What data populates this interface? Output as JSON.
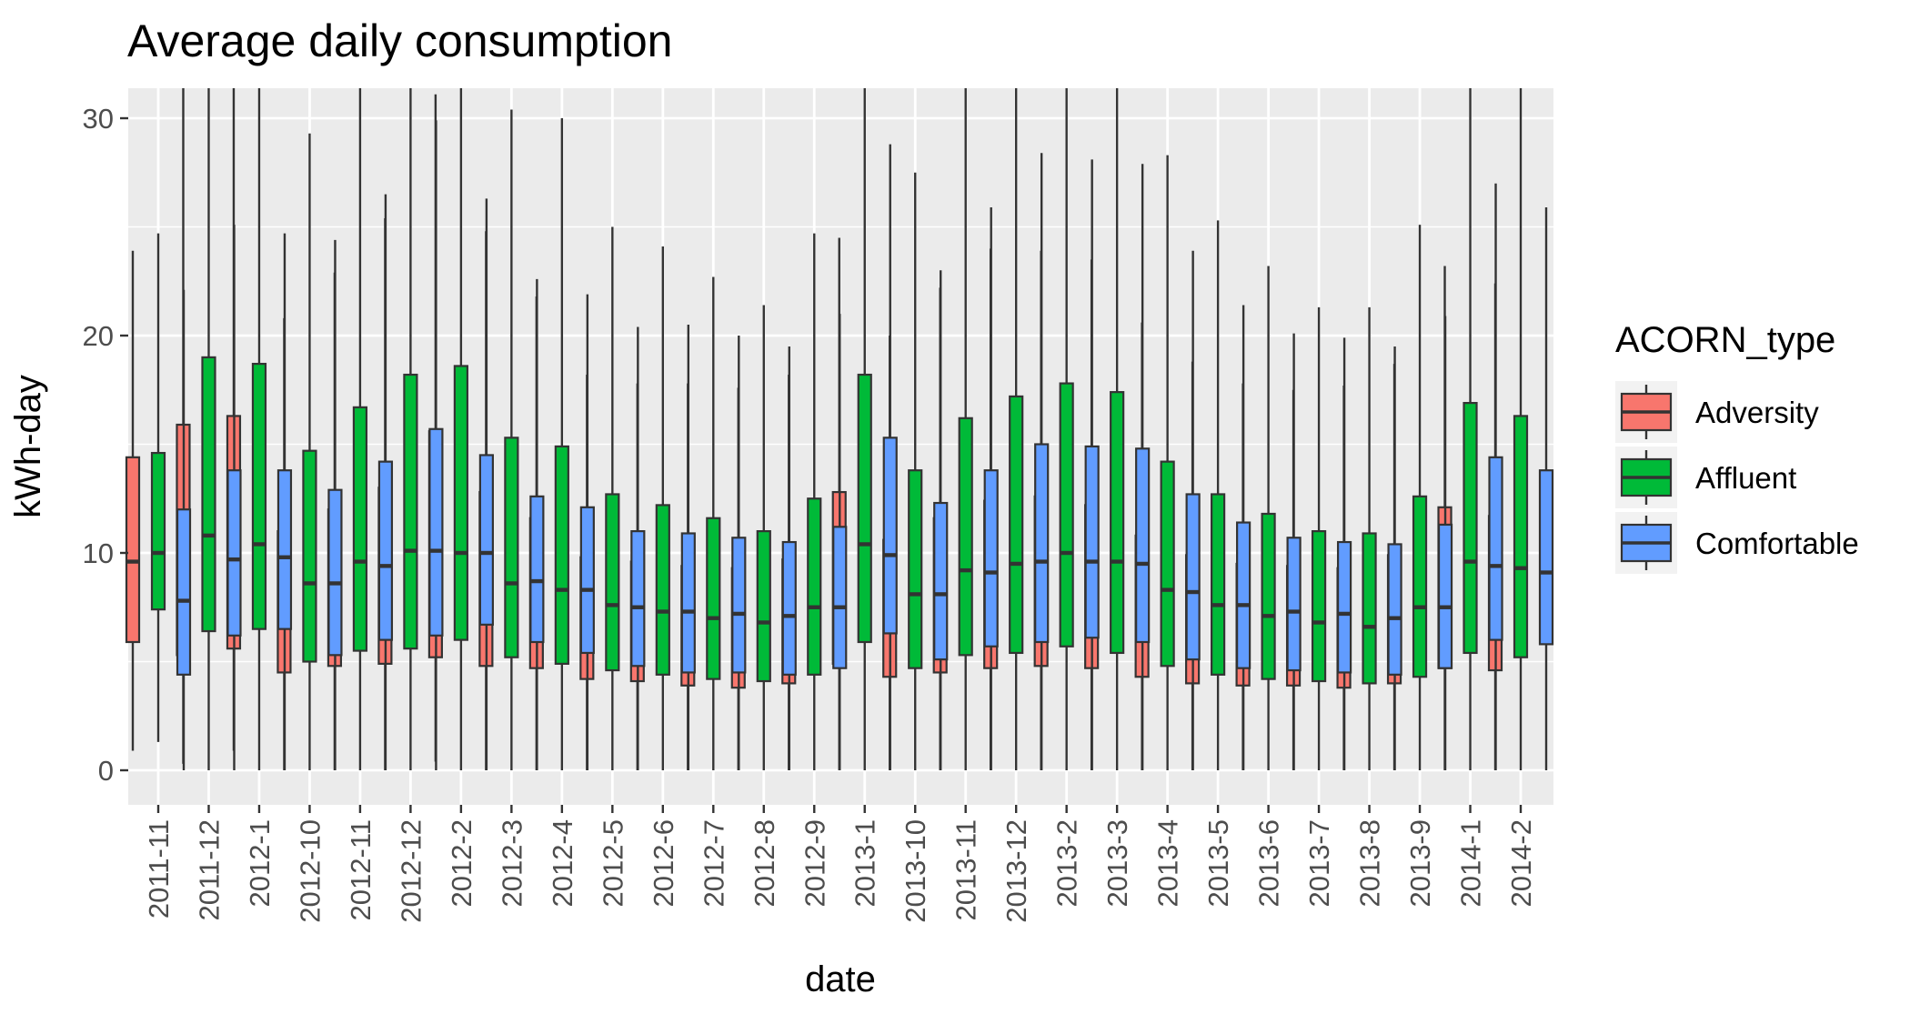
{
  "chart_data": {
    "type": "boxplot",
    "title": "Average daily consumption",
    "xlabel": "date",
    "ylabel": "kWh-day",
    "ylim": [
      -1.5,
      31.5
    ],
    "yticks": [
      0,
      10,
      20,
      30
    ],
    "grid": true,
    "legend": {
      "title": "ACORN_type",
      "placement": "right"
    },
    "categories": [
      "2011-11",
      "2011-12",
      "2012-1",
      "2012-10",
      "2012-11",
      "2012-12",
      "2012-2",
      "2012-3",
      "2012-4",
      "2012-5",
      "2012-6",
      "2012-7",
      "2012-8",
      "2012-9",
      "2013-1",
      "2013-10",
      "2013-11",
      "2013-12",
      "2013-2",
      "2013-3",
      "2013-4",
      "2013-5",
      "2013-6",
      "2013-7",
      "2013-8",
      "2013-9",
      "2014-1",
      "2014-2"
    ],
    "series": [
      {
        "name": "Adversity",
        "color": "#F8766D",
        "boxes": [
          {
            "whisker_low": 0.9,
            "q1": 5.9,
            "median": 9.6,
            "q3": 14.4,
            "whisker_high": 23.9
          },
          {
            "whisker_low": 0.3,
            "q1": 5.3,
            "median": 9.2,
            "q3": 15.9,
            "whisker_high": 32.0
          },
          {
            "whisker_low": 0.9,
            "q1": 5.6,
            "median": 9.9,
            "q3": 16.3,
            "whisker_high": 32.0
          },
          {
            "whisker_low": 0.0,
            "q1": 4.5,
            "median": 7.2,
            "q3": 11.0,
            "whisker_high": 20.8
          },
          {
            "whisker_low": 0.0,
            "q1": 4.8,
            "median": 7.8,
            "q3": 12.0,
            "whisker_high": 22.9
          },
          {
            "whisker_low": 0.0,
            "q1": 4.9,
            "median": 8.3,
            "q3": 13.0,
            "whisker_high": 25.4
          },
          {
            "whisker_low": 0.4,
            "q1": 5.2,
            "median": 9.2,
            "q3": 15.6,
            "whisker_high": 31.1
          },
          {
            "whisker_low": 0.0,
            "q1": 4.8,
            "median": 7.8,
            "q3": 12.8,
            "whisker_high": 24.8
          },
          {
            "whisker_low": 0.0,
            "q1": 4.7,
            "median": 7.4,
            "q3": 11.6,
            "whisker_high": 21.8
          },
          {
            "whisker_low": 0.0,
            "q1": 4.2,
            "median": 6.5,
            "q3": 9.8,
            "whisker_high": 18.2
          },
          {
            "whisker_low": 0.0,
            "q1": 4.1,
            "median": 6.4,
            "q3": 9.6,
            "whisker_high": 17.8
          },
          {
            "whisker_low": 0.0,
            "q1": 3.9,
            "median": 6.3,
            "q3": 9.4,
            "whisker_high": 17.8
          },
          {
            "whisker_low": 0.0,
            "q1": 3.8,
            "median": 6.2,
            "q3": 9.3,
            "whisker_high": 17.6
          },
          {
            "whisker_low": 0.0,
            "q1": 4.0,
            "median": 6.4,
            "q3": 9.7,
            "whisker_high": 18.2
          },
          {
            "whisker_low": 0.0,
            "q1": 4.9,
            "median": 8.2,
            "q3": 12.8,
            "whisker_high": 24.5
          },
          {
            "whisker_low": 0.0,
            "q1": 4.3,
            "median": 7.0,
            "q3": 10.6,
            "whisker_high": 20.0
          },
          {
            "whisker_low": 0.0,
            "q1": 4.5,
            "median": 7.5,
            "q3": 11.6,
            "whisker_high": 22.2
          },
          {
            "whisker_low": 0.0,
            "q1": 4.7,
            "median": 7.9,
            "q3": 12.4,
            "whisker_high": 24.0
          },
          {
            "whisker_low": 0.0,
            "q1": 4.8,
            "median": 8.0,
            "q3": 12.6,
            "whisker_high": 23.9
          },
          {
            "whisker_low": 0.0,
            "q1": 4.7,
            "median": 7.8,
            "q3": 12.2,
            "whisker_high": 23.5
          },
          {
            "whisker_low": 0.0,
            "q1": 4.3,
            "median": 7.0,
            "q3": 10.8,
            "whisker_high": 20.6
          },
          {
            "whisker_low": 0.0,
            "q1": 4.0,
            "median": 6.5,
            "q3": 9.9,
            "whisker_high": 18.8
          },
          {
            "whisker_low": 0.0,
            "q1": 3.9,
            "median": 6.3,
            "q3": 9.5,
            "whisker_high": 17.8
          },
          {
            "whisker_low": 0.0,
            "q1": 3.9,
            "median": 6.2,
            "q3": 9.4,
            "whisker_high": 17.5
          },
          {
            "whisker_low": 0.0,
            "q1": 3.8,
            "median": 6.1,
            "q3": 9.3,
            "whisker_high": 17.7
          },
          {
            "whisker_low": 0.0,
            "q1": 4.0,
            "median": 6.5,
            "q3": 9.9,
            "whisker_high": 18.7
          },
          {
            "whisker_low": 0.0,
            "q1": 4.7,
            "median": 7.8,
            "q3": 12.1,
            "whisker_high": 23.2
          },
          {
            "whisker_low": 0.0,
            "q1": 4.6,
            "median": 7.6,
            "q3": 11.7,
            "whisker_high": 22.4
          }
        ]
      },
      {
        "name": "Affluent",
        "color": "#00BA38",
        "boxes": [
          {
            "whisker_low": 1.3,
            "q1": 7.4,
            "median": 10.0,
            "q3": 14.6,
            "whisker_high": 24.7
          },
          {
            "whisker_low": 0.0,
            "q1": 6.4,
            "median": 10.8,
            "q3": 19.0,
            "whisker_high": 32.0
          },
          {
            "whisker_low": 0.0,
            "q1": 6.5,
            "median": 10.4,
            "q3": 18.7,
            "whisker_high": 32.0
          },
          {
            "whisker_low": 0.0,
            "q1": 5.0,
            "median": 8.6,
            "q3": 14.7,
            "whisker_high": 29.3
          },
          {
            "whisker_low": 0.0,
            "q1": 5.5,
            "median": 9.6,
            "q3": 16.7,
            "whisker_high": 32.0
          },
          {
            "whisker_low": 0.0,
            "q1": 5.6,
            "median": 10.1,
            "q3": 18.2,
            "whisker_high": 32.0
          },
          {
            "whisker_low": 0.0,
            "q1": 6.0,
            "median": 10.0,
            "q3": 18.6,
            "whisker_high": 32.0
          },
          {
            "whisker_low": 0.0,
            "q1": 5.2,
            "median": 8.6,
            "q3": 15.3,
            "whisker_high": 30.4
          },
          {
            "whisker_low": 0.0,
            "q1": 4.9,
            "median": 8.3,
            "q3": 14.9,
            "whisker_high": 30.0
          },
          {
            "whisker_low": 0.0,
            "q1": 4.6,
            "median": 7.6,
            "q3": 12.7,
            "whisker_high": 25.0
          },
          {
            "whisker_low": 0.0,
            "q1": 4.4,
            "median": 7.3,
            "q3": 12.2,
            "whisker_high": 24.1
          },
          {
            "whisker_low": 0.0,
            "q1": 4.2,
            "median": 7.0,
            "q3": 11.6,
            "whisker_high": 22.7
          },
          {
            "whisker_low": 0.0,
            "q1": 4.1,
            "median": 6.8,
            "q3": 11.0,
            "whisker_high": 21.4
          },
          {
            "whisker_low": 0.0,
            "q1": 4.4,
            "median": 7.5,
            "q3": 12.5,
            "whisker_high": 24.7
          },
          {
            "whisker_low": 0.0,
            "q1": 5.9,
            "median": 10.4,
            "q3": 18.2,
            "whisker_high": 32.0
          },
          {
            "whisker_low": 0.0,
            "q1": 4.7,
            "median": 8.1,
            "q3": 13.8,
            "whisker_high": 27.5
          },
          {
            "whisker_low": 0.0,
            "q1": 5.3,
            "median": 9.2,
            "q3": 16.2,
            "whisker_high": 32.0
          },
          {
            "whisker_low": 0.0,
            "q1": 5.4,
            "median": 9.5,
            "q3": 17.2,
            "whisker_high": 32.0
          },
          {
            "whisker_low": 0.0,
            "q1": 5.7,
            "median": 10.0,
            "q3": 17.8,
            "whisker_high": 32.0
          },
          {
            "whisker_low": 0.0,
            "q1": 5.4,
            "median": 9.6,
            "q3": 17.4,
            "whisker_high": 32.0
          },
          {
            "whisker_low": 0.0,
            "q1": 4.8,
            "median": 8.3,
            "q3": 14.2,
            "whisker_high": 28.3
          },
          {
            "whisker_low": 0.0,
            "q1": 4.4,
            "median": 7.6,
            "q3": 12.7,
            "whisker_high": 25.3
          },
          {
            "whisker_low": 0.0,
            "q1": 4.2,
            "median": 7.1,
            "q3": 11.8,
            "whisker_high": 23.2
          },
          {
            "whisker_low": 0.0,
            "q1": 4.1,
            "median": 6.8,
            "q3": 11.0,
            "whisker_high": 21.3
          },
          {
            "whisker_low": 0.0,
            "q1": 4.0,
            "median": 6.6,
            "q3": 10.9,
            "whisker_high": 21.3
          },
          {
            "whisker_low": 0.0,
            "q1": 4.3,
            "median": 7.5,
            "q3": 12.6,
            "whisker_high": 25.1
          },
          {
            "whisker_low": 0.0,
            "q1": 5.4,
            "median": 9.6,
            "q3": 16.9,
            "whisker_high": 32.0
          },
          {
            "whisker_low": 0.0,
            "q1": 5.2,
            "median": 9.3,
            "q3": 16.3,
            "whisker_high": 32.0
          }
        ]
      },
      {
        "name": "Comfortable",
        "color": "#619CFF",
        "boxes": [
          {
            "whisker_low": 0.0,
            "q1": 4.4,
            "median": 7.8,
            "q3": 12.0,
            "whisker_high": 22.1
          },
          {
            "whisker_low": 0.0,
            "q1": 6.2,
            "median": 9.7,
            "q3": 13.8,
            "whisker_high": 25.1
          },
          {
            "whisker_low": 0.0,
            "q1": 6.5,
            "median": 9.8,
            "q3": 13.8,
            "whisker_high": 24.7
          },
          {
            "whisker_low": 0.0,
            "q1": 5.3,
            "median": 8.6,
            "q3": 12.9,
            "whisker_high": 24.4
          },
          {
            "whisker_low": 0.0,
            "q1": 6.0,
            "median": 9.4,
            "q3": 14.2,
            "whisker_high": 26.5
          },
          {
            "whisker_low": 0.0,
            "q1": 6.2,
            "median": 10.1,
            "q3": 15.7,
            "whisker_high": 29.9
          },
          {
            "whisker_low": 0.0,
            "q1": 6.7,
            "median": 10.0,
            "q3": 14.5,
            "whisker_high": 26.3
          },
          {
            "whisker_low": 0.0,
            "q1": 5.9,
            "median": 8.7,
            "q3": 12.6,
            "whisker_high": 22.6
          },
          {
            "whisker_low": 0.0,
            "q1": 5.4,
            "median": 8.3,
            "q3": 12.1,
            "whisker_high": 21.9
          },
          {
            "whisker_low": 0.0,
            "q1": 4.8,
            "median": 7.5,
            "q3": 11.0,
            "whisker_high": 20.4
          },
          {
            "whisker_low": 0.0,
            "q1": 4.5,
            "median": 7.3,
            "q3": 10.9,
            "whisker_high": 20.5
          },
          {
            "whisker_low": 0.0,
            "q1": 4.5,
            "median": 7.2,
            "q3": 10.7,
            "whisker_high": 20.0
          },
          {
            "whisker_low": 0.0,
            "q1": 4.4,
            "median": 7.1,
            "q3": 10.5,
            "whisker_high": 19.5
          },
          {
            "whisker_low": 0.0,
            "q1": 4.7,
            "median": 7.5,
            "q3": 11.2,
            "whisker_high": 21.0
          },
          {
            "whisker_low": 0.0,
            "q1": 6.3,
            "median": 9.9,
            "q3": 15.3,
            "whisker_high": 28.8
          },
          {
            "whisker_low": 0.0,
            "q1": 5.1,
            "median": 8.1,
            "q3": 12.3,
            "whisker_high": 23.0
          },
          {
            "whisker_low": 0.0,
            "q1": 5.7,
            "median": 9.1,
            "q3": 13.8,
            "whisker_high": 25.9
          },
          {
            "whisker_low": 0.0,
            "q1": 5.9,
            "median": 9.6,
            "q3": 15.0,
            "whisker_high": 28.4
          },
          {
            "whisker_low": 0.0,
            "q1": 6.1,
            "median": 9.6,
            "q3": 14.9,
            "whisker_high": 28.1
          },
          {
            "whisker_low": 0.0,
            "q1": 5.9,
            "median": 9.5,
            "q3": 14.8,
            "whisker_high": 27.9
          },
          {
            "whisker_low": 0.0,
            "q1": 5.1,
            "median": 8.2,
            "q3": 12.7,
            "whisker_high": 23.9
          },
          {
            "whisker_low": 0.0,
            "q1": 4.7,
            "median": 7.6,
            "q3": 11.4,
            "whisker_high": 21.4
          },
          {
            "whisker_low": 0.0,
            "q1": 4.6,
            "median": 7.3,
            "q3": 10.7,
            "whisker_high": 20.1
          },
          {
            "whisker_low": 0.0,
            "q1": 4.5,
            "median": 7.2,
            "q3": 10.5,
            "whisker_high": 19.9
          },
          {
            "whisker_low": 0.0,
            "q1": 4.4,
            "median": 7.0,
            "q3": 10.4,
            "whisker_high": 19.5
          },
          {
            "whisker_low": 0.0,
            "q1": 4.7,
            "median": 7.5,
            "q3": 11.3,
            "whisker_high": 20.9
          },
          {
            "whisker_low": 0.0,
            "q1": 6.0,
            "median": 9.4,
            "q3": 14.4,
            "whisker_high": 27.0
          },
          {
            "whisker_low": 0.0,
            "q1": 5.8,
            "median": 9.1,
            "q3": 13.8,
            "whisker_high": 25.9
          }
        ]
      }
    ]
  }
}
